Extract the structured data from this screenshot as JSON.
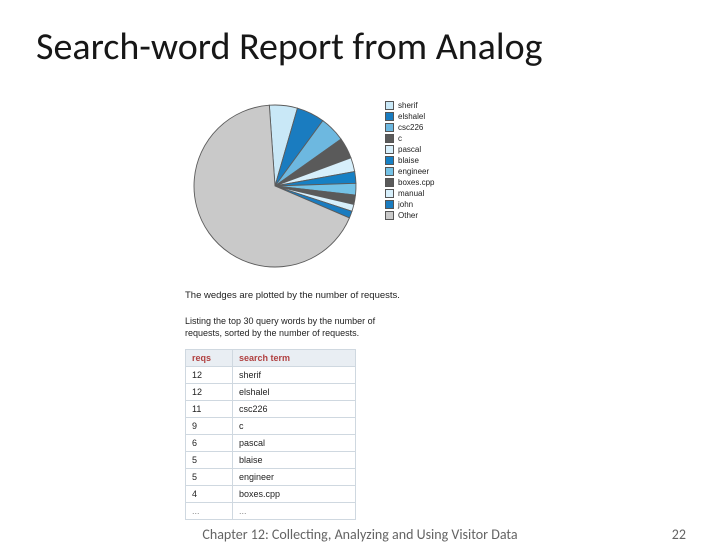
{
  "title": "Search-word Report from Analog",
  "pie": {
    "type": "pie",
    "background_color": "#ffffff",
    "stroke_color": "#5c5c5c",
    "stroke_width": 1,
    "slices": [
      {
        "label": "sherif",
        "value": 12,
        "color": "#c9e8f7"
      },
      {
        "label": "elshalel",
        "value": 12,
        "color": "#1a7cc0"
      },
      {
        "label": "csc226",
        "value": 11,
        "color": "#6db8e0"
      },
      {
        "label": "c",
        "value": 9,
        "color": "#5a5a5a"
      },
      {
        "label": "pascal",
        "value": 6,
        "color": "#d7effb"
      },
      {
        "label": "blaise",
        "value": 5,
        "color": "#1680c4"
      },
      {
        "label": "engineer",
        "value": 5,
        "color": "#74c2e6"
      },
      {
        "label": "boxes.cpp",
        "value": 4,
        "color": "#5a5a5a"
      },
      {
        "label": "manual",
        "value": 3,
        "color": "#d7effb"
      },
      {
        "label": "john",
        "value": 3,
        "color": "#1a7cc0"
      },
      {
        "label": "Other",
        "value": 145,
        "color": "#c9c9c9"
      }
    ],
    "legend_swatch_border": "#555555"
  },
  "caption": "The wedges are plotted by the number of requests.",
  "subcaption": "Listing the top 30 query words by the number of requests, sorted by the number of requests.",
  "table": {
    "header_bg": "#e9eef3",
    "header_color": "#b04040",
    "border_color": "#cfd8e0",
    "columns": [
      "reqs",
      "search term"
    ],
    "rows": [
      [
        "12",
        "sherif"
      ],
      [
        "12",
        "elshalel"
      ],
      [
        "11",
        "csc226"
      ],
      [
        "9",
        "c"
      ],
      [
        "6",
        "pascal"
      ],
      [
        "5",
        "blaise"
      ],
      [
        "5",
        "engineer"
      ],
      [
        "4",
        "boxes.cpp"
      ]
    ],
    "ellipsis_row": [
      "...",
      "..."
    ]
  },
  "footer_chapter": "Chapter 12: Collecting, Analyzing and Using Visitor Data",
  "footer_page": "22"
}
